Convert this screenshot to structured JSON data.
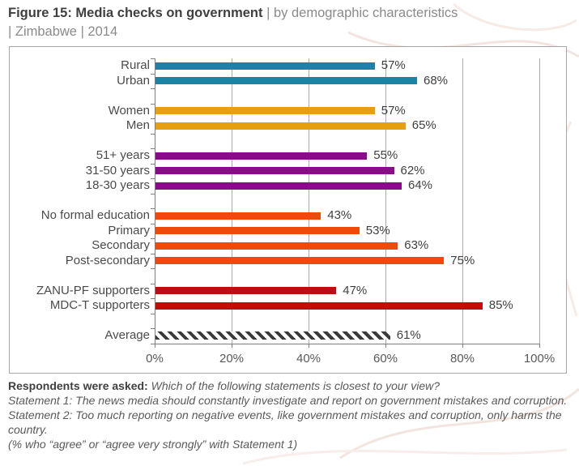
{
  "title": {
    "bold": "Figure 15: Media checks on government",
    "rest": " | by demographic characteristics",
    "line2": "| Zimbabwe | 2014"
  },
  "chart_data": {
    "type": "bar",
    "orientation": "horizontal",
    "title": "Media checks on government by demographic characteristics, Zimbabwe 2014",
    "xlabel": "",
    "ylabel": "",
    "xlim": [
      0,
      100
    ],
    "x_ticks": [
      "0%",
      "20%",
      "40%",
      "60%",
      "80%",
      "100%"
    ],
    "grid": "vertical-gridlines-every-20pct",
    "legend": "none",
    "groups": [
      {
        "name": "location",
        "color": "#1b84a5",
        "items": [
          {
            "label": "Rural",
            "value": 57,
            "display": "57%"
          },
          {
            "label": "Urban",
            "value": 68,
            "display": "68%"
          }
        ]
      },
      {
        "name": "gender",
        "color": "#e6a00f",
        "items": [
          {
            "label": "Women",
            "value": 57,
            "display": "57%"
          },
          {
            "label": "Men",
            "value": 65,
            "display": "65%"
          }
        ]
      },
      {
        "name": "age",
        "color": "#8a0b8a",
        "items": [
          {
            "label": "51+ years",
            "value": 55,
            "display": "55%"
          },
          {
            "label": "31-50 years",
            "value": 62,
            "display": "62%"
          },
          {
            "label": "18-30 years",
            "value": 64,
            "display": "64%"
          }
        ]
      },
      {
        "name": "education",
        "color": "#f04a0b",
        "items": [
          {
            "label": "No formal education",
            "value": 43,
            "display": "43%"
          },
          {
            "label": "Primary",
            "value": 53,
            "display": "53%"
          },
          {
            "label": "Secondary",
            "value": 63,
            "display": "63%"
          },
          {
            "label": "Post-secondary",
            "value": 75,
            "display": "75%"
          }
        ]
      },
      {
        "name": "party",
        "color": "#c00c0c",
        "items": [
          {
            "label": "ZANU-PF supporters",
            "value": 47,
            "display": "47%"
          },
          {
            "label": "MDC-T supporters",
            "value": 85,
            "display": "85%"
          }
        ]
      },
      {
        "name": "average",
        "color": "hatch",
        "hatch_color": "#3a3a3a",
        "items": [
          {
            "label": "Average",
            "value": 61,
            "display": "61%"
          }
        ]
      }
    ]
  },
  "footnote": {
    "lead_bold": "Respondents were asked:",
    "lead_rest": " Which of the following statements is closest to your view?",
    "lines": [
      "Statement 1: The news media should constantly investigate and report on government mistakes and corruption.",
      "Statement 2: Too much reporting on negative events, like government mistakes and corruption, only harms the country.",
      "(% who “agree” or “agree very strongly” with Statement 1)"
    ]
  },
  "colors": {
    "title_dark": "#3f3f3f",
    "title_gray": "#8a8a8a",
    "box_border": "#a6a6a6",
    "gridline": "#aaaaaa",
    "axis": "#7f7f7f",
    "label_text": "#4a4a4a",
    "footnote_text": "#595959"
  }
}
